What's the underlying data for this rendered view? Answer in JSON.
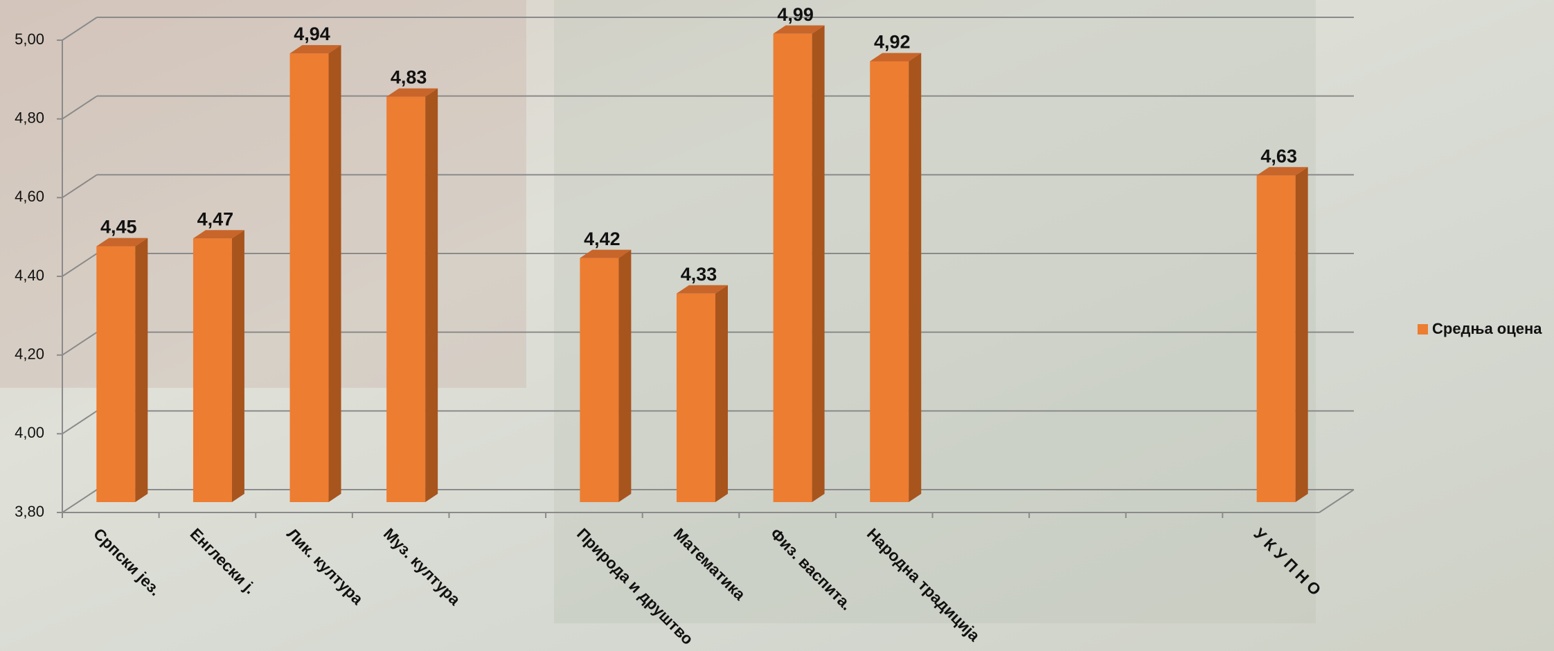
{
  "chart_data": {
    "type": "bar3d",
    "categories": [
      "Српски јез.",
      "Енглески ј.",
      "Лик. култура",
      "Муз. култура",
      null,
      "Природа и друштво",
      "Математика",
      "Физ. васпита.",
      "Народна традиција",
      null,
      null,
      null,
      "У К У П Н О"
    ],
    "series": [
      {
        "name": "Средња оцена",
        "color": "#ED7D31",
        "values": [
          4.45,
          4.47,
          4.94,
          4.83,
          null,
          4.42,
          4.33,
          4.99,
          4.92,
          null,
          null,
          null,
          4.63
        ],
        "value_labels": [
          "4,45",
          "4,47",
          "4,94",
          "4,83",
          null,
          "4,42",
          "4,33",
          "4,99",
          "4,92",
          null,
          null,
          null,
          "4,63"
        ]
      }
    ],
    "ylim": [
      3.8,
      5.0
    ],
    "yticks": [
      {
        "value": 3.8,
        "label": "3,80"
      },
      {
        "value": 4.0,
        "label": "4,00"
      },
      {
        "value": 4.2,
        "label": "4,20"
      },
      {
        "value": 4.4,
        "label": "4,40"
      },
      {
        "value": 4.6,
        "label": "4,60"
      },
      {
        "value": 4.8,
        "label": "4,80"
      },
      {
        "value": 5.0,
        "label": "5,00"
      }
    ],
    "grid": true,
    "legend": "right"
  }
}
